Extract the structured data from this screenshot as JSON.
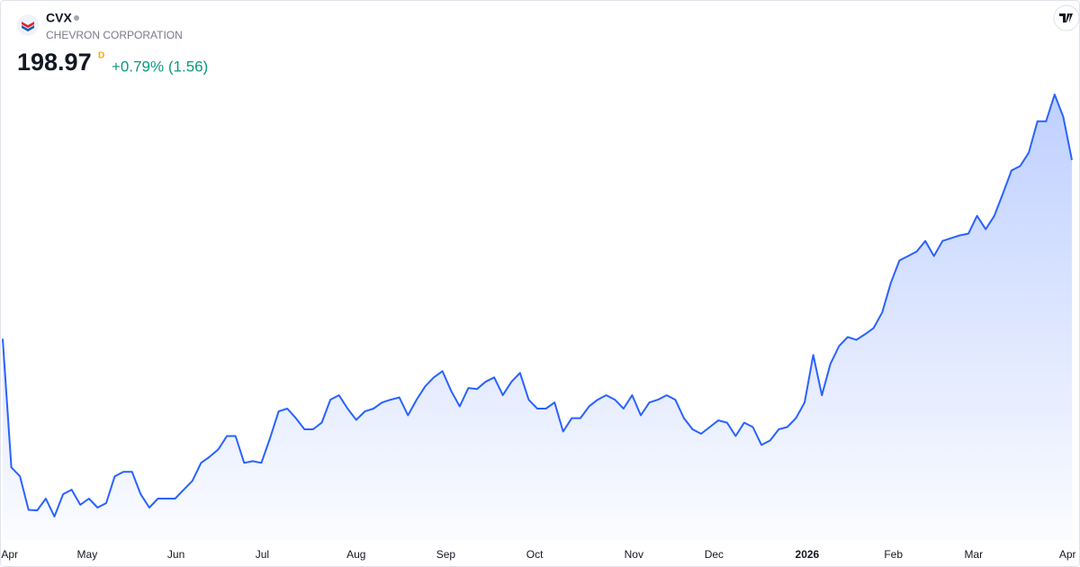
{
  "chart_data": {
    "type": "line",
    "symbol": "CVX",
    "company": "CHEVRON CORPORATION",
    "price": 198.97,
    "interval": "D",
    "change_label": "+0.79% (1.56)",
    "color": "#2962ff",
    "values": [
      167.0,
      144.0,
      142.4,
      136.4,
      136.3,
      138.4,
      135.2,
      139.2,
      140.0,
      137.3,
      138.4,
      136.8,
      137.6,
      142.4,
      143.2,
      143.2,
      139.2,
      136.8,
      138.4,
      138.4,
      138.4,
      140.0,
      141.6,
      144.8,
      145.9,
      147.2,
      149.6,
      149.6,
      144.8,
      145.1,
      144.8,
      149.2,
      154.0,
      154.5,
      152.8,
      150.8,
      150.8,
      152.0,
      156.1,
      156.9,
      154.5,
      152.5,
      154.0,
      154.5,
      155.6,
      156.1,
      156.5,
      153.3,
      156.1,
      158.5,
      160.1,
      161.2,
      157.7,
      154.9,
      158.2,
      158.0,
      159.3,
      160.1,
      156.9,
      159.3,
      160.9,
      156.1,
      154.5,
      154.5,
      155.6,
      150.4,
      152.8,
      152.8,
      154.9,
      156.1,
      156.9,
      156.1,
      154.5,
      156.9,
      153.3,
      155.6,
      156.1,
      156.9,
      156.1,
      152.8,
      150.8,
      150.0,
      151.2,
      152.4,
      152.0,
      149.6,
      152.0,
      151.2,
      148.0,
      148.8,
      150.8,
      151.2,
      152.8,
      155.6,
      164.1,
      156.9,
      162.5,
      165.7,
      167.3,
      166.8,
      167.8,
      168.9,
      171.7,
      177.0,
      181.0,
      181.8,
      182.6,
      184.5,
      181.8,
      184.5,
      185.0,
      185.5,
      185.8,
      189.0,
      186.6,
      189.0,
      193.0,
      197.1,
      197.9,
      200.3,
      205.9,
      205.9,
      210.7,
      206.7,
      198.97
    ],
    "xlim": [
      0,
      124
    ],
    "ylim": [
      131,
      227.6
    ],
    "xticks": [
      {
        "value": 0.8,
        "label": "Apr"
      },
      {
        "value": 9.8,
        "label": "May"
      },
      {
        "value": 20.1,
        "label": "Jun"
      },
      {
        "value": 30.1,
        "label": "Jul"
      },
      {
        "value": 41,
        "label": "Aug"
      },
      {
        "value": 51.4,
        "label": "Sep"
      },
      {
        "value": 61.7,
        "label": "Oct"
      },
      {
        "value": 73.2,
        "label": "Nov"
      },
      {
        "value": 82.5,
        "label": "Dec"
      },
      {
        "value": 93.3,
        "label": "2026"
      },
      {
        "value": 103.3,
        "label": "Feb"
      },
      {
        "value": 112.6,
        "label": "Mar"
      },
      {
        "value": 123.5,
        "label": "Apr"
      }
    ]
  }
}
